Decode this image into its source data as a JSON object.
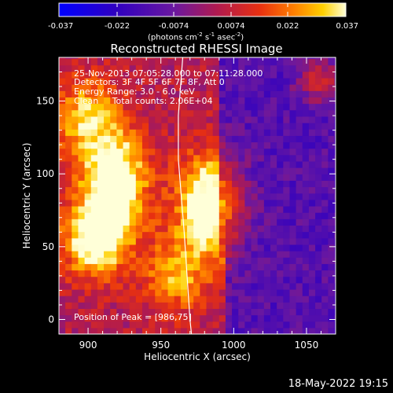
{
  "chart_data": {
    "type": "heatmap",
    "title": "Reconstructed RHESSI Image",
    "xlabel": "Heliocentric X (arcsec)",
    "ylabel": "Heliocentric Y (arcsec)",
    "xlim": [
      880,
      1070
    ],
    "ylim": [
      -10,
      180
    ],
    "xticks": [
      900,
      950,
      1000,
      1050
    ],
    "yticks": [
      0,
      50,
      100,
      150
    ],
    "colorbar": {
      "range": [
        -0.037,
        0.037
      ],
      "tick_labels": [
        "-0.037",
        "-0.022",
        "-0.0074",
        "0.0074",
        "0.022",
        "0.037"
      ],
      "unit_label": "(photons cm",
      "unit_label_parts": [
        "(photons cm",
        "-2",
        " s",
        "-1",
        " asec",
        "-2",
        ")"
      ]
    },
    "annotations": [
      "25-Nov-2013 07:05:28.000 to 07:11:28.000",
      "Detectors: 3F 4F 5F 6F 7F 8F, Att 0",
      "Energy Range: 3.0 - 6.0 keV",
      "Clean     Total counts: 2.06E+04",
      "Position of Peak = [986,75]"
    ],
    "peak": {
      "x": 986,
      "y": 75
    },
    "sources": [
      {
        "x": 918,
        "y": 95,
        "amp": 1.0
      },
      {
        "x": 905,
        "y": 55,
        "amp": 0.85
      },
      {
        "x": 983,
        "y": 78,
        "amp": 1.0
      },
      {
        "x": 898,
        "y": 140,
        "amp": 0.6
      },
      {
        "x": 960,
        "y": 30,
        "amp": 0.5
      }
    ],
    "limb_line": [
      [
        965,
        180
      ],
      [
        962,
        140
      ],
      [
        962,
        110
      ],
      [
        966,
        60
      ],
      [
        970,
        0
      ],
      [
        971,
        -10
      ]
    ]
  },
  "timestamp": "18-May-2022 19:15"
}
